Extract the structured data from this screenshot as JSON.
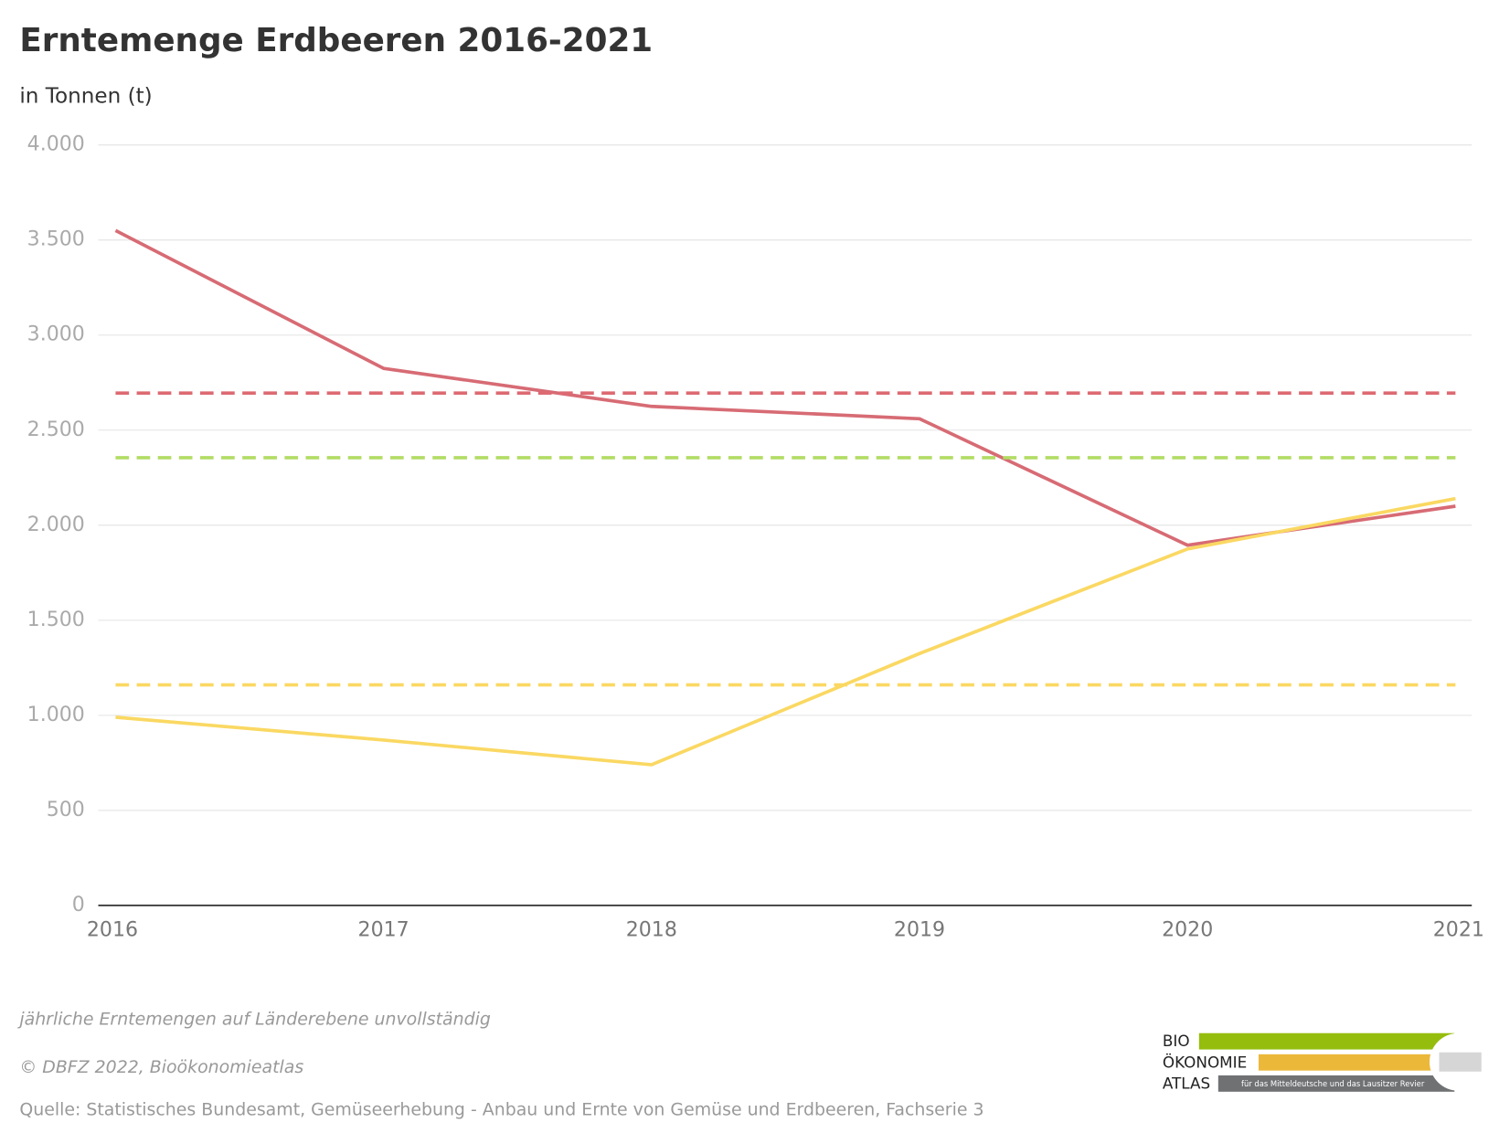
{
  "chart_data": {
    "type": "line",
    "title": "Erntemenge Erdbeeren 2016-2021",
    "subtitle": "in Tonnen (t)",
    "categories": [
      "2016",
      "2017",
      "2018",
      "2019",
      "2020",
      "2021"
    ],
    "series": [
      {
        "color": "#d76b74",
        "values": [
          3550,
          2825,
          2625,
          2560,
          1895,
          2100
        ]
      },
      {
        "color": "#fad862",
        "values": [
          990,
          870,
          740,
          1325,
          1875,
          2140
        ]
      },
      {
        "color": "#dd6a72",
        "dashed": true,
        "values": [
          2695,
          2695,
          2695,
          2695,
          2695,
          2695
        ]
      },
      {
        "color": "#b2dc64",
        "dashed": true,
        "values": [
          2355,
          2355,
          2355,
          2355,
          2355,
          2355
        ]
      },
      {
        "color": "#fad862",
        "dashed": true,
        "values": [
          1160,
          1160,
          1160,
          1160,
          1160,
          1160
        ]
      }
    ],
    "ylim": [
      0,
      4000
    ],
    "yticks": [
      0,
      500,
      {
        "value": 1000,
        "label": "1.000"
      },
      {
        "value": 1500,
        "label": "1.500"
      },
      {
        "value": 2000,
        "label": "2.000"
      },
      {
        "value": 2500,
        "label": "2.500"
      },
      {
        "value": 3000,
        "label": "3.000"
      },
      {
        "value": 3500,
        "label": "3.500"
      },
      {
        "value": 4000,
        "label": "4.000"
      }
    ],
    "grid": true,
    "note": "jährliche Erntemengen auf Länderebene unvollständig",
    "copyright": "© DBFZ 2022, Bioökonomieatlas",
    "source": "Quelle: Statistisches Bundesamt, Gemüseerhebung - Anbau und Ernte von Gemüse und Erdbeeren, Fachserie 3"
  },
  "logo": {
    "line1": "BIO",
    "line2": "ÖKONOMIE",
    "line3": "ATLAS",
    "tagline": "für das Mitteldeutsche und das Lausitzer Revier"
  }
}
